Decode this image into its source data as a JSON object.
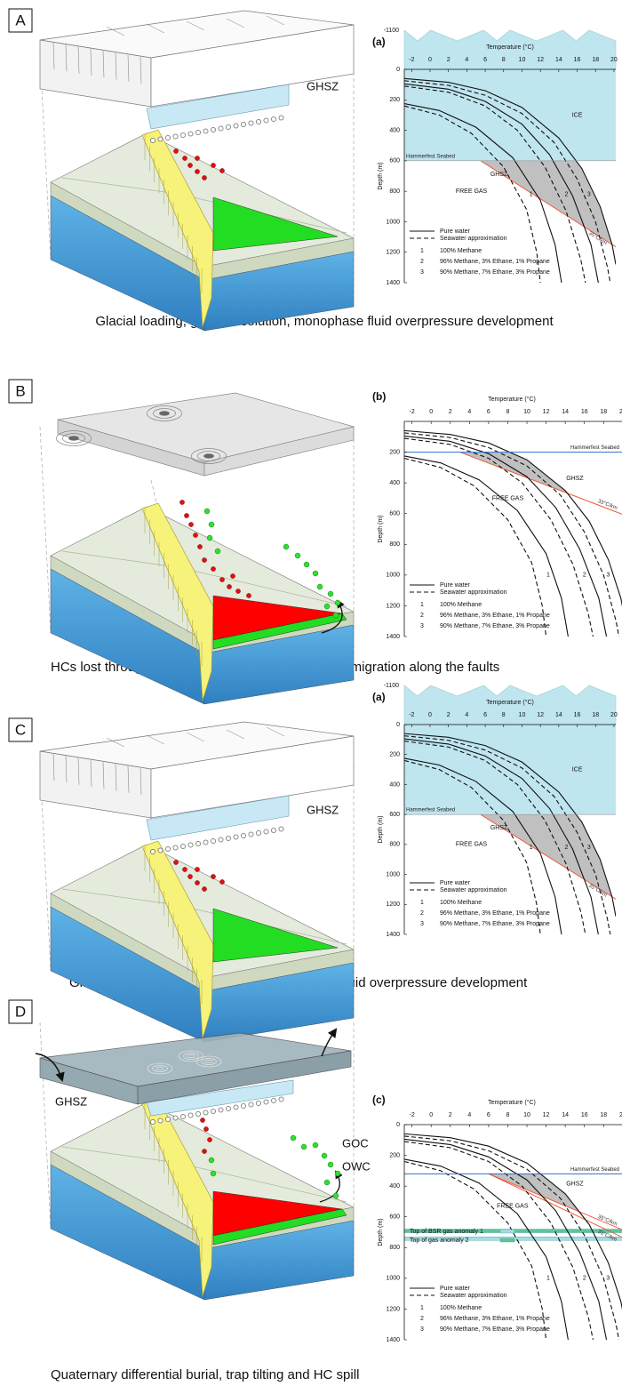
{
  "stability_curves": [
    {
      "label": "1",
      "dashed": false,
      "x": [
        -2.8,
        1,
        5,
        9,
        12,
        13.6,
        14.3
      ],
      "values": [
        225,
        270,
        380,
        580,
        860,
        1150,
        1400
      ]
    },
    {
      "label": "1",
      "dashed": true,
      "x": [
        -2.8,
        1,
        4.5,
        8,
        10.5,
        11.6,
        12
      ],
      "values": [
        240,
        300,
        420,
        640,
        920,
        1200,
        1400
      ]
    },
    {
      "label": "2",
      "dashed": false,
      "x": [
        -2.8,
        2,
        6,
        10,
        13,
        15.5,
        17.5,
        18.3
      ],
      "values": [
        95,
        130,
        210,
        360,
        560,
        830,
        1150,
        1400
      ]
    },
    {
      "label": "2",
      "dashed": true,
      "x": [
        -2.8,
        2,
        6,
        9.5,
        12.5,
        14.8,
        16.4,
        16.9
      ],
      "values": [
        110,
        150,
        240,
        400,
        640,
        930,
        1250,
        1400
      ]
    },
    {
      "label": "3",
      "dashed": false,
      "x": [
        -2.8,
        2,
        6,
        10,
        14,
        16.5,
        18.5,
        19.8,
        20.2
      ],
      "values": [
        60,
        85,
        140,
        250,
        450,
        650,
        900,
        1150,
        1280
      ]
    },
    {
      "label": "3",
      "dashed": true,
      "x": [
        -2.8,
        2,
        6,
        10,
        13.5,
        16,
        18,
        19.3,
        19.6
      ],
      "values": [
        75,
        105,
        170,
        290,
        480,
        720,
        1000,
        1300,
        1400
      ]
    }
  ],
  "legend": {
    "line_styles": [
      {
        "dashed": false,
        "label": "Pure water"
      },
      {
        "dashed": true,
        "label": "Seawater approximation"
      }
    ],
    "compositions": [
      "100% Methane",
      "96% Methane, 3% Ethane, 1% Propane",
      "90% Methane, 7% Ethane, 3% Propane"
    ]
  },
  "panels": [
    {
      "label": "A",
      "caption": "Glacial loading, gas into solution, monophase fluid overpressure development",
      "diagram_labels": [
        "GHSZ"
      ],
      "chart": {
        "tag": "(a)",
        "top_label": "-1100",
        "x_label": "Temperature (°C)",
        "y_label": "Depth (m)",
        "xlim": [
          -2.8,
          20.2
        ],
        "ylim": [
          0,
          1400
        ],
        "xticks": [
          -2,
          0,
          2,
          4,
          6,
          8,
          10,
          12,
          14,
          16,
          18,
          20
        ],
        "yticks": [
          0,
          200,
          400,
          600,
          800,
          1000,
          1200,
          1400
        ],
        "ice": true,
        "seabed": {
          "label": "Hammerfest Seabed",
          "depth": 600
        },
        "region_labels": [
          "ICE",
          "GHSZ",
          "FREE GAS"
        ],
        "geotherms": [
          {
            "label": "35°C/km",
            "x": [
              5.5,
              20.2
            ],
            "values": [
              600,
              1165
            ]
          }
        ]
      }
    },
    {
      "label": "B",
      "caption": "HCs lost through caprock at lower rates than rapid migration along the faults",
      "chart": {
        "tag": "(b)",
        "x_label": "Temperature (°C)",
        "y_label": "Depth (m)",
        "xlim": [
          -2.8,
          20.2
        ],
        "ylim": [
          0,
          1400
        ],
        "xticks": [
          -2,
          0,
          2,
          4,
          6,
          8,
          10,
          12,
          14,
          16,
          18,
          20
        ],
        "yticks": [
          200,
          400,
          600,
          800,
          1000,
          1200,
          1400
        ],
        "ice": false,
        "seabed": {
          "label": "Hammerfest Seabed",
          "depth": 200
        },
        "region_labels": [
          "GHSZ",
          "FREE GAS"
        ],
        "geotherms": [
          {
            "label": "33°C/km",
            "x": [
              3,
              20.2
            ],
            "values": [
              200,
              610
            ]
          }
        ]
      }
    },
    {
      "label": "C",
      "caption": "Glacial loading, gas into solution, monophase fluid overpressure development",
      "diagram_labels": [
        "GHSZ"
      ],
      "chart": {
        "tag": "(a)",
        "top_label": "-1100",
        "x_label": "Temperature (°C)",
        "y_label": "Depth (m)",
        "xlim": [
          -2.8,
          20.2
        ],
        "ylim": [
          0,
          1400
        ],
        "xticks": [
          -2,
          0,
          2,
          4,
          6,
          8,
          10,
          12,
          14,
          16,
          18,
          20
        ],
        "yticks": [
          0,
          200,
          400,
          600,
          800,
          1000,
          1200,
          1400
        ],
        "ice": true,
        "seabed": {
          "label": "Hammerfest Seabed",
          "depth": 600
        },
        "region_labels": [
          "ICE",
          "GHSZ",
          "FREE GAS"
        ],
        "geotherms": [
          {
            "label": "35°C/km",
            "x": [
              5.5,
              20.2
            ],
            "values": [
              600,
              1165
            ]
          }
        ]
      }
    },
    {
      "label": "D",
      "caption": "Quaternary differential burial, trap tilting and HC spill",
      "diagram_labels": [
        "GHSZ",
        "GOC",
        "OWC"
      ],
      "chart": {
        "tag": "(c)",
        "x_label": "Temperature (°C)",
        "y_label": "Depth (m)",
        "xlim": [
          -2.8,
          20.2
        ],
        "ylim": [
          0,
          1400
        ],
        "xticks": [
          -2,
          0,
          2,
          4,
          6,
          8,
          10,
          12,
          14,
          16,
          18,
          20
        ],
        "yticks": [
          0,
          200,
          400,
          600,
          800,
          1000,
          1200,
          1400
        ],
        "ice": false,
        "seabed": {
          "label": "Hammerfest Seabed",
          "depth": 320
        },
        "region_labels": [
          "GHSZ",
          "FREE GAS"
        ],
        "geotherms": [
          {
            "label": "35°C/km",
            "x": [
              6,
              20.2
            ],
            "values": [
              320,
              690
            ]
          },
          {
            "label": "33°C/km",
            "x": [
              6,
              20.2
            ],
            "values": [
              320,
              740
            ]
          }
        ],
        "anomalies": [
          {
            "label": "Top of BSR gas anomaly 1",
            "depth": 730,
            "color": "#a9d8ec"
          },
          {
            "label": "Top of gas anomaly 2",
            "depth": 680,
            "color": "#5fc3a0"
          }
        ]
      }
    }
  ]
}
